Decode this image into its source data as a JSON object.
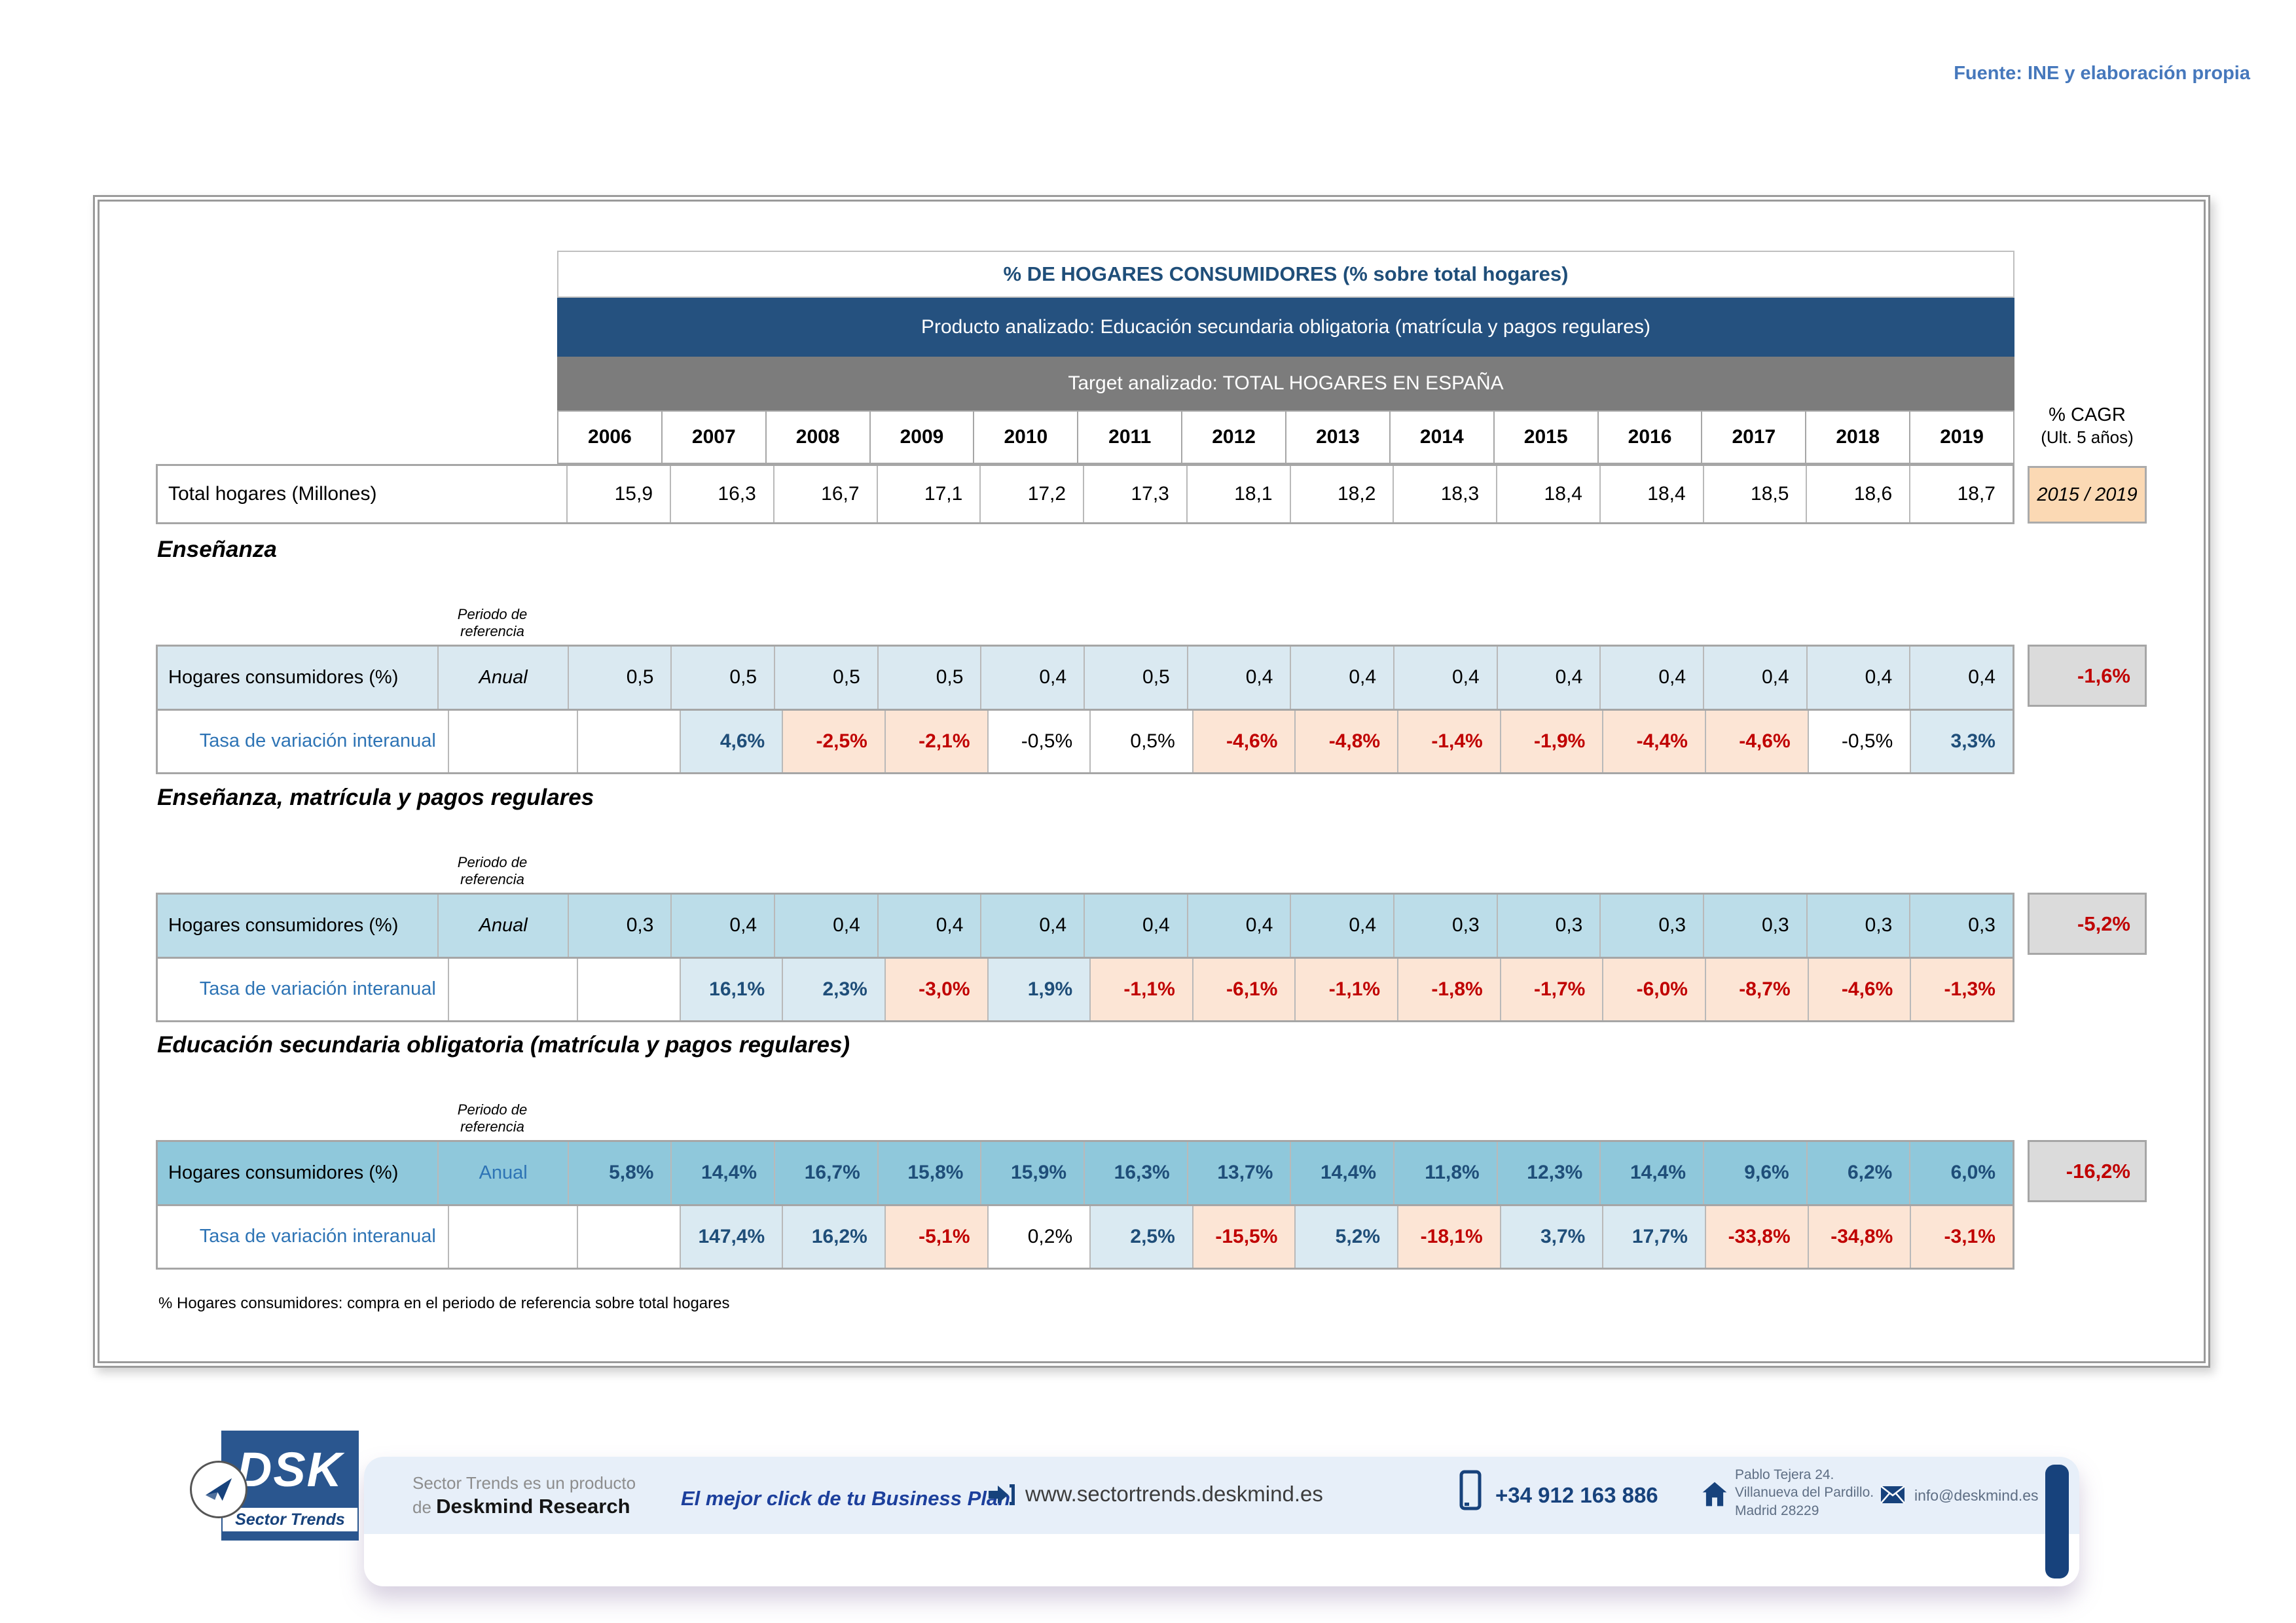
{
  "source_note": "Fuente: INE y elaboración propia",
  "header": {
    "title": "% DE HOGARES CONSUMIDORES (% sobre total hogares)",
    "product_line": "Producto analizado: Educación secundaria obligatoria (matrícula y pagos regulares)",
    "target_line": "Target analizado: TOTAL HOGARES EN ESPAÑA",
    "years": [
      "2006",
      "2007",
      "2008",
      "2009",
      "2010",
      "2011",
      "2012",
      "2013",
      "2014",
      "2015",
      "2016",
      "2017",
      "2018",
      "2019"
    ],
    "cagr_title": "% CAGR",
    "cagr_subtitle": "(Ult. 5 años)",
    "cagr_period": "2015 / 2019"
  },
  "total_row": {
    "label": "Total hogares (Millones)",
    "values": [
      "15,9",
      "16,3",
      "16,7",
      "17,1",
      "17,2",
      "17,3",
      "18,1",
      "18,2",
      "18,3",
      "18,4",
      "18,4",
      "18,5",
      "18,6",
      "18,7"
    ]
  },
  "sections": [
    {
      "heading": "Enseñanza",
      "periodo_label": "Periodo de referencia",
      "row_label": "Hogares consumidores (%)",
      "period_value": "Anual",
      "consumers": [
        "0,5",
        "0,5",
        "0,5",
        "0,5",
        "0,4",
        "0,5",
        "0,4",
        "0,4",
        "0,4",
        "0,4",
        "0,4",
        "0,4",
        "0,4",
        "0,4"
      ],
      "cagr": "-1,6%",
      "variation_label": "Tasa de variación interanual",
      "variation": [
        "",
        "4,6%",
        "-2,5%",
        "-2,1%",
        "-0,5%",
        "0,5%",
        "-4,6%",
        "-4,8%",
        "-1,4%",
        "-1,9%",
        "-4,4%",
        "-4,6%",
        "-0,5%",
        "3,3%"
      ]
    },
    {
      "heading": "Enseñanza, matrícula y pagos regulares",
      "periodo_label": "Periodo de referencia",
      "row_label": "Hogares consumidores (%)",
      "period_value": "Anual",
      "consumers": [
        "0,3",
        "0,4",
        "0,4",
        "0,4",
        "0,4",
        "0,4",
        "0,4",
        "0,4",
        "0,3",
        "0,3",
        "0,3",
        "0,3",
        "0,3",
        "0,3"
      ],
      "cagr": "-5,2%",
      "variation_label": "Tasa de variación interanual",
      "variation": [
        "",
        "16,1%",
        "2,3%",
        "-3,0%",
        "1,9%",
        "-1,1%",
        "-6,1%",
        "-1,1%",
        "-1,8%",
        "-1,7%",
        "-6,0%",
        "-8,7%",
        "-4,6%",
        "-1,3%"
      ]
    },
    {
      "heading": "Educación secundaria obligatoria (matrícula y pagos regulares)",
      "periodo_label": "Periodo de referencia",
      "row_label": "Hogares consumidores (%)",
      "period_value": "Anual",
      "consumers": [
        "5,8%",
        "14,4%",
        "16,7%",
        "15,8%",
        "15,9%",
        "16,3%",
        "13,7%",
        "14,4%",
        "11,8%",
        "12,3%",
        "14,4%",
        "9,6%",
        "6,2%",
        "6,0%"
      ],
      "cagr": "-16,2%",
      "variation_label": "Tasa de variación interanual",
      "variation": [
        "",
        "147,4%",
        "16,2%",
        "-5,1%",
        "0,2%",
        "2,5%",
        "-15,5%",
        "5,2%",
        "-18,1%",
        "3,7%",
        "17,7%",
        "-33,8%",
        "-34,8%",
        "-3,1%"
      ]
    }
  ],
  "footnote": "% Hogares consumidores: compra en el periodo de referencia sobre total hogares",
  "footer": {
    "logo_text": "DSK",
    "logo_subtitle": "Sector Trends",
    "producer_line1": "Sector Trends es un producto",
    "producer_line2_prefix": "de ",
    "producer_line2_bold": "Deskmind Research",
    "slogan": "El mejor click de tu Business Plan",
    "website": "www.sectortrends.deskmind.es",
    "phone": "+34 912 163 886",
    "address_lines": [
      "Pablo Tejera 24.",
      "Villanueva del Pardillo.",
      "Madrid 28229"
    ],
    "email": "info@deskmind.es"
  },
  "colors": {
    "title_navy": "#1F4E79",
    "band_blue": "#25517F",
    "band_gray": "#7C7C7C",
    "source_note_blue": "#4678BC",
    "section1_row_bg": "#DAE9F1",
    "section2_row_bg": "#BCDDE9",
    "section3_row_bg": "#8FC8DB",
    "positive_bg": "#DAEAF2",
    "positive_text": "#1F4E79",
    "negative_bg": "#FCE5D5",
    "negative_text": "#C00000",
    "cagr_cell_bg": "#DBDBDB",
    "period_cell_bg": "#FBD9B4",
    "footer_blue": "#E7EFF9",
    "brand_navy": "#17427C"
  }
}
